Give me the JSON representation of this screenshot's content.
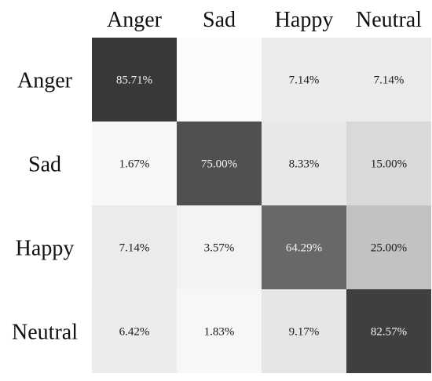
{
  "chart_data": {
    "type": "heatmap",
    "title": "",
    "xlabel": "",
    "ylabel": "",
    "columns": [
      "Anger",
      "Sad",
      "Happy",
      "Neutral"
    ],
    "rows": [
      "Anger",
      "Sad",
      "Happy",
      "Neutral"
    ],
    "values": [
      [
        85.71,
        0.0,
        7.14,
        7.14
      ],
      [
        1.67,
        75.0,
        8.33,
        15.0
      ],
      [
        7.14,
        3.57,
        64.29,
        25.0
      ],
      [
        6.42,
        1.83,
        9.17,
        82.57
      ]
    ],
    "labels": [
      [
        "85.71%",
        "",
        "7.14%",
        "7.14%"
      ],
      [
        "1.67%",
        "75.00%",
        "8.33%",
        "15.00%"
      ],
      [
        "7.14%",
        "3.57%",
        "64.29%",
        "25.00%"
      ],
      [
        "6.42%",
        "1.83%",
        "9.17%",
        "82.57%"
      ]
    ],
    "value_range": [
      0,
      100
    ],
    "colormap": {
      "low": "#fbfbfb",
      "high": "#171717"
    },
    "legend": "none",
    "grid": false
  }
}
